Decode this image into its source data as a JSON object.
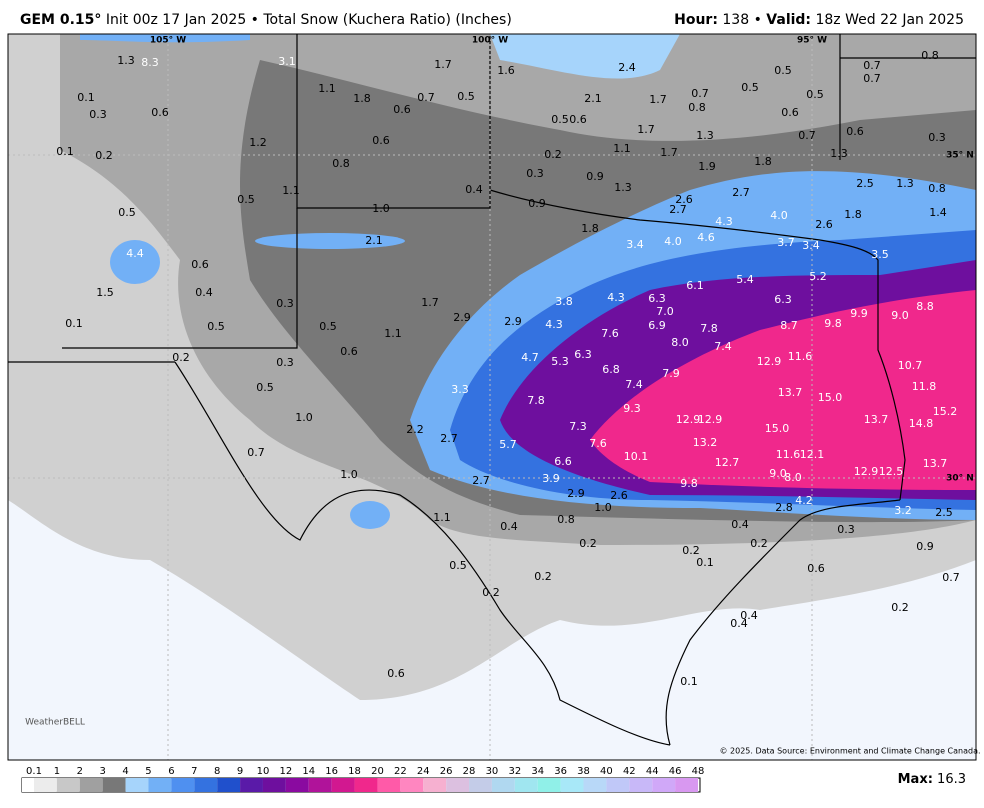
{
  "header": {
    "model": "GEM 0.15°",
    "description": "Init 00z 17 Jan 2025 • Total Snow (Kuchera Ratio) (Inches)",
    "hour_label": "Hour:",
    "hour": "138",
    "separator": "•",
    "valid_label": "Valid:",
    "valid": "18z Wed 22 Jan 2025"
  },
  "map": {
    "gridline_labels": [
      "105° W",
      "100° W",
      "95° W",
      "35° N",
      "30° N"
    ],
    "labels": [
      "0.8",
      "0.7",
      "0.7",
      "0.5",
      "0.5",
      "0.5",
      "0.7",
      "0.8",
      "0.6",
      "2.4",
      "1.6",
      "1.7",
      "3.1",
      "1.3",
      "8.3",
      "1.1",
      "1.8",
      "0.7",
      "0.5",
      "2.1",
      "1.7",
      "0.5",
      "0.6",
      "0.1",
      "0.3",
      "0.6",
      "0.6",
      "1.2",
      "1.7",
      "1.3",
      "0.7",
      "0.6",
      "0.3",
      "0.1",
      "0.2",
      "0.6",
      "0.2",
      "1.1",
      "1.7",
      "1.8",
      "1.3",
      "0.8",
      "0.3",
      "0.9",
      "1.9",
      "2.5",
      "1.3",
      "0.8",
      "1.1",
      "0.4",
      "1.3",
      "2.7",
      "0.5",
      "0.9",
      "2.6",
      "2.7",
      "1.0",
      "0.5",
      "4.3",
      "4.0",
      "2.6",
      "1.8",
      "1.4",
      "1.8",
      "2.1",
      "3.4",
      "4.0",
      "4.6",
      "3.7",
      "3.4",
      "3.5",
      "4.4",
      "0.6",
      "5.4",
      "5.2",
      "1.5",
      "0.4",
      "6.1",
      "3.8",
      "4.3",
      "6.3",
      "6.3",
      "8.8",
      "0.3",
      "1.7",
      "0.5",
      "0.1",
      "2.9",
      "2.9",
      "4.3",
      "7.0",
      "6.9",
      "9.9",
      "9.0",
      "8.7",
      "9.8",
      "7.6",
      "7.8",
      "0.5",
      "1.1",
      "0.6",
      "8.0",
      "7.4",
      "0.2",
      "6.3",
      "4.7",
      "5.3",
      "12.9",
      "11.6",
      "10.7",
      "0.3",
      "6.8",
      "7.9",
      "0.5",
      "3.3",
      "7.4",
      "11.8",
      "13.7",
      "15.0",
      "7.8",
      "9.3",
      "1.0",
      "12.9",
      "12.9",
      "15.2",
      "13.7",
      "14.8",
      "2.2",
      "7.3",
      "15.0",
      "2.7",
      "0.7",
      "5.7",
      "7.6",
      "13.2",
      "10.1",
      "12.1",
      "11.6",
      "6.6",
      "12.7",
      "12.9",
      "12.5",
      "13.7",
      "1.0",
      "9.0",
      "8.0",
      "2.7",
      "3.9",
      "9.8",
      "2.9",
      "2.6",
      "4.2",
      "1.0",
      "2.8",
      "3.2",
      "2.5",
      "1.1",
      "0.8",
      "0.4",
      "0.4",
      "0.3",
      "0.2",
      "0.2",
      "0.2",
      "0.9",
      "0.1",
      "0.5",
      "0.6",
      "0.2",
      "0.7",
      "0.2",
      "0.2",
      "0.4",
      "0.4",
      "0.6",
      "0.1"
    ],
    "copyright": "© 2025. Data Source: Environment and Climate Change Canada.",
    "logo": "WeatherBELL"
  },
  "colorbar": {
    "ticks": [
      "0.1",
      "1",
      "2",
      "3",
      "4",
      "5",
      "6",
      "7",
      "8",
      "9",
      "10",
      "12",
      "14",
      "16",
      "18",
      "20",
      "22",
      "24",
      "26",
      "28",
      "30",
      "32",
      "34",
      "36",
      "38",
      "40",
      "42",
      "44",
      "46",
      "48"
    ],
    "colors": [
      "#ececec",
      "#c8c8c8",
      "#a0a0a0",
      "#787878",
      "#a6d4fb",
      "#72b0f6",
      "#4f90f0",
      "#3472e0",
      "#2050cc",
      "#5a1aa8",
      "#6e0f9e",
      "#8a0aa0",
      "#b0139a",
      "#d21890",
      "#f0288c",
      "#ff5aa8",
      "#ff86c0",
      "#f6b0d0",
      "#dcc0e0",
      "#c4cce8",
      "#b0d8f0",
      "#a0e6f0",
      "#90f0e8",
      "#a8e8f8",
      "#b8d8f8",
      "#c0c8f8",
      "#c8b8f8",
      "#d0a8f8",
      "#d898f0"
    ]
  },
  "footer": {
    "max_label": "Max:",
    "max": "16.3"
  }
}
